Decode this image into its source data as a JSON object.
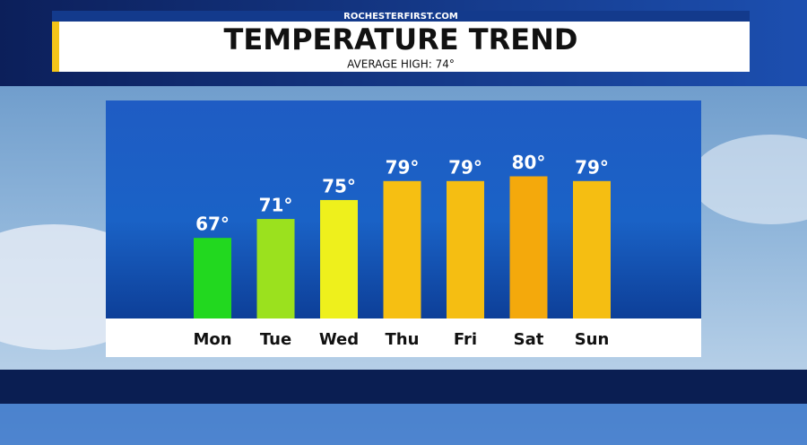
{
  "chart_data": {
    "type": "bar",
    "source": "ROCHESTERFIRST.COM",
    "title": "TEMPERATURE TREND",
    "subtitle": "AVERAGE HIGH: 74°",
    "categories": [
      "Mon",
      "Tue",
      "Wed",
      "Thu",
      "Fri",
      "Sat",
      "Sun"
    ],
    "values": [
      67,
      71,
      75,
      79,
      79,
      80,
      79
    ],
    "value_labels": [
      "67°",
      "71°",
      "75°",
      "79°",
      "79°",
      "80°",
      "79°"
    ],
    "colors": [
      "#22d81f",
      "#9be11e",
      "#eef01c",
      "#f6bf12",
      "#f5be12",
      "#f4a90c",
      "#f5be12"
    ],
    "ylim": [
      50,
      96
    ]
  }
}
